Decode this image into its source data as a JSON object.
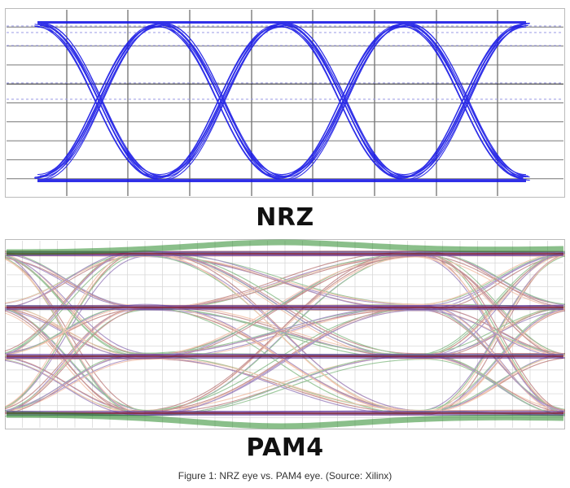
{
  "panels": [
    {
      "label": "NRZ",
      "trace_color": "#1a1ae6",
      "levels": 2
    },
    {
      "label": "PAM4",
      "trace_colors": [
        "#8a1a1a",
        "#4a1a8a",
        "#2a8a2a",
        "#e88a5a"
      ],
      "levels": 4
    }
  ],
  "caption": "Figure 1: NRZ eye vs. PAM4 eye. (Source: Xilinx)"
}
